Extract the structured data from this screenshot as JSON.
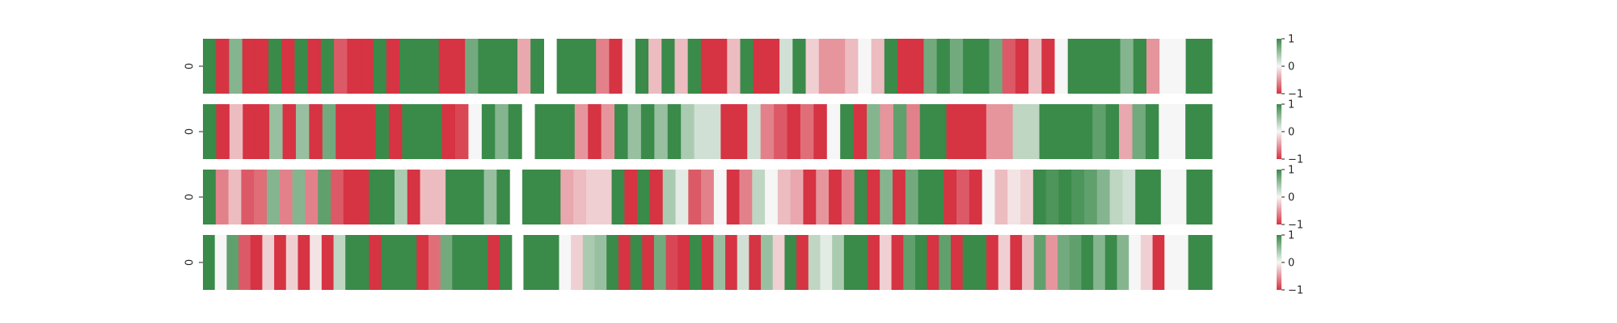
{
  "chart_data": {
    "type": "heatmap",
    "color_scale": {
      "min": -1,
      "max": 1,
      "low": "#d63343",
      "mid": "#f6f6f6",
      "high": "#3a8a4a"
    },
    "colorbar_ticks": [
      1,
      0,
      -1
    ],
    "colorbar_tick_labels": [
      "1",
      "0",
      "−1"
    ],
    "panels": [
      {
        "row_label": "0",
        "values": [
          1,
          -1,
          0.6,
          -1,
          -1,
          1,
          -1,
          1,
          -1,
          1,
          -0.8,
          -1,
          -1,
          1,
          -1,
          1,
          1,
          1,
          -1,
          -1,
          0.7,
          1,
          1,
          1,
          -0.4,
          1,
          null,
          1,
          1,
          1,
          -0.6,
          -1,
          0,
          1,
          -0.3,
          1,
          -0.3,
          1,
          -1,
          -1,
          -0.3,
          1,
          -1,
          -1,
          0.2,
          1,
          -0.2,
          -0.5,
          -0.5,
          -0.3,
          0,
          -0.3,
          1,
          -1,
          -1,
          0.7,
          1,
          0.7,
          1,
          1,
          0.7,
          -0.8,
          -1,
          -0.3,
          -1,
          0,
          1,
          1,
          1,
          1,
          0.6,
          1,
          -0.5,
          0,
          0,
          1,
          1
        ]
      },
      {
        "row_label": "0",
        "values": [
          1,
          -1,
          -0.3,
          -1,
          -1,
          0.5,
          -1,
          0.5,
          -1,
          0.7,
          -1,
          -1,
          -1,
          1,
          -1,
          1,
          1,
          1,
          -1,
          -0.9,
          0,
          1,
          0.6,
          1,
          null,
          1,
          1,
          1,
          -0.5,
          -1,
          -0.5,
          1,
          0.5,
          1,
          0.5,
          1,
          0.4,
          0.2,
          0.2,
          -1,
          -1,
          0.2,
          -0.6,
          -0.8,
          -1,
          -0.7,
          -1,
          0,
          1,
          -1,
          0.6,
          -0.5,
          0.8,
          -0.6,
          1,
          1,
          -1,
          -1,
          -1,
          -0.5,
          -0.5,
          0.3,
          0.3,
          1,
          1,
          1,
          1,
          0.8,
          1,
          -0.4,
          0.7,
          1,
          0,
          0,
          1,
          1
        ]
      },
      {
        "row_label": "0",
        "values": [
          1,
          -0.6,
          -0.3,
          -0.8,
          -0.7,
          0.6,
          -0.6,
          0.6,
          -0.6,
          0.8,
          -0.8,
          -1,
          -1,
          1,
          1,
          0.4,
          -1,
          -0.3,
          -0.3,
          1,
          1,
          1,
          0.5,
          1,
          null,
          1,
          1,
          1,
          -0.4,
          -0.3,
          -0.2,
          -0.2,
          1,
          -1,
          1,
          -1,
          0.4,
          0.1,
          -0.8,
          -0.6,
          0,
          -1,
          -0.6,
          0.3,
          0,
          -0.3,
          -0.4,
          -1,
          -0.5,
          -1,
          -0.6,
          1,
          -1,
          0.6,
          -1,
          0.7,
          1,
          1,
          -1,
          -0.8,
          -1,
          0,
          -0.3,
          -0.1,
          -0.2,
          1,
          0.9,
          1,
          0.9,
          0.8,
          0.6,
          0.3,
          0.2,
          1,
          1,
          0,
          0,
          1,
          1
        ]
      },
      {
        "row_label": "0",
        "values": [
          1,
          0,
          0.8,
          -0.8,
          -1,
          -0.2,
          -1,
          -0.2,
          -1,
          -0.1,
          -1,
          0.3,
          1,
          1,
          -1,
          1,
          1,
          1,
          -1,
          -0.7,
          0.7,
          1,
          1,
          1,
          -1,
          1,
          null,
          1,
          1,
          1,
          0,
          -0.2,
          0.4,
          0.5,
          1,
          -1,
          1,
          -1,
          0.7,
          -0.9,
          -1,
          1,
          -1,
          0.5,
          -1,
          0.2,
          -1,
          0.5,
          -0.2,
          1,
          -1,
          0.3,
          0.1,
          0.4,
          1,
          1,
          -1,
          -0.2,
          -1,
          0.8,
          1,
          -1,
          0.8,
          -1,
          1,
          1,
          -1,
          -0.2,
          -1,
          -0.3,
          0.8,
          -0.5,
          0.7,
          0.8,
          1,
          0.6,
          1,
          0.6,
          0,
          -0.2,
          -1,
          0,
          0,
          1,
          1
        ]
      }
    ]
  }
}
